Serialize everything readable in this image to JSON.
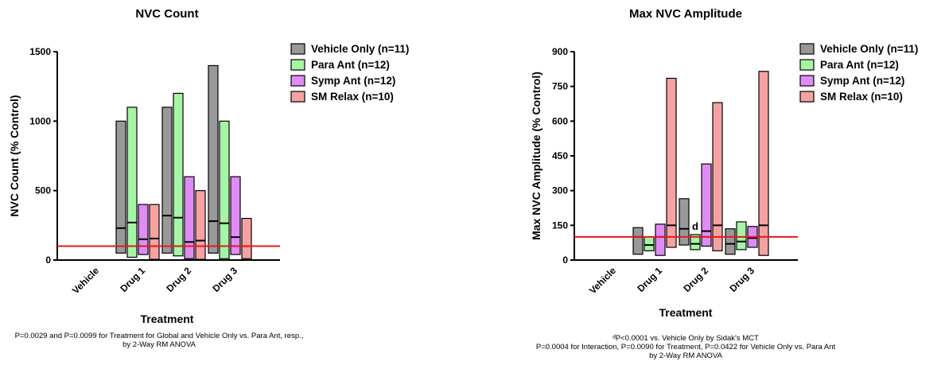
{
  "chart_data": [
    {
      "type": "floating-bar",
      "title": "NVC Count",
      "ylabel": "NVC Count (% Control)",
      "xlabel": "Treatment",
      "ylim": [
        0,
        1500
      ],
      "yticks": [
        0,
        500,
        1000,
        1500
      ],
      "categories": [
        "Vehicle",
        "Drug 1",
        "Drug 2",
        "Drug 3"
      ],
      "reference_line": 100,
      "legend_position": "right",
      "series": [
        {
          "name": "Vehicle Only (n=11)",
          "color": "#999999",
          "min": [
            100,
            50,
            50,
            50
          ],
          "median": [
            100,
            230,
            320,
            280
          ],
          "max": [
            100,
            1000,
            1100,
            1400
          ]
        },
        {
          "name": "Para Ant (n=12)",
          "color": "#a6f5a6",
          "min": [
            100,
            20,
            30,
            10
          ],
          "median": [
            100,
            270,
            305,
            265
          ],
          "max": [
            100,
            1100,
            1200,
            1000
          ]
        },
        {
          "name": "Symp Ant (n=12)",
          "color": "#e08cf5",
          "min": [
            100,
            40,
            10,
            40
          ],
          "median": [
            100,
            150,
            130,
            165
          ],
          "max": [
            100,
            400,
            600,
            600
          ]
        },
        {
          "name": "SM Relax (n=10)",
          "color": "#f7a2a2",
          "min": [
            100,
            5,
            5,
            10
          ],
          "median": [
            100,
            155,
            140,
            100
          ],
          "max": [
            100,
            400,
            500,
            300
          ]
        }
      ],
      "annotations": [],
      "footnote": [
        "P=0.0029 and P=0.0099 for Treatment for Global and Vehicle Only vs. Para Ant, resp.,",
        "by 2-Way RM ANOVA"
      ]
    },
    {
      "type": "floating-bar",
      "title": "Max NVC Amplitude",
      "ylabel": "Max NVC Amplitude (% Control)",
      "xlabel": "Treatment",
      "ylim": [
        0,
        900
      ],
      "yticks": [
        0,
        150,
        300,
        450,
        600,
        750,
        900
      ],
      "categories": [
        "Vehicle",
        "Drug 1",
        "Drug 2",
        "Drug 3"
      ],
      "reference_line": 100,
      "legend_position": "right",
      "series": [
        {
          "name": "Vehicle Only (n=11)",
          "color": "#999999",
          "min": [
            100,
            25,
            65,
            25
          ],
          "median": [
            100,
            100,
            135,
            70
          ],
          "max": [
            100,
            140,
            265,
            135
          ]
        },
        {
          "name": "Para Ant (n=12)",
          "color": "#a6f5a6",
          "min": [
            100,
            40,
            45,
            45
          ],
          "median": [
            100,
            65,
            70,
            80
          ],
          "max": [
            100,
            100,
            110,
            165
          ]
        },
        {
          "name": "Symp Ant (n=12)",
          "color": "#e08cf5",
          "min": [
            100,
            20,
            60,
            55
          ],
          "median": [
            100,
            100,
            125,
            95
          ],
          "max": [
            100,
            155,
            415,
            145
          ]
        },
        {
          "name": "SM Relax (n=10)",
          "color": "#f7a2a2",
          "min": [
            100,
            55,
            40,
            20
          ],
          "median": [
            100,
            150,
            150,
            150
          ],
          "max": [
            100,
            785,
            680,
            815
          ]
        }
      ],
      "annotations": [
        {
          "text": "d",
          "category": "Drug 2",
          "series": "Para Ant (n=12)"
        }
      ],
      "footnote": [
        "ᵈP<0.0001 vs. Vehicle Only by Sidak's MCT",
        "P=0.0004 for Interaction, P=0.0090 for Treatment, P=0.0422 for Vehicle Only vs. Para Ant",
        "by 2-Way RM ANOVA"
      ]
    }
  ]
}
